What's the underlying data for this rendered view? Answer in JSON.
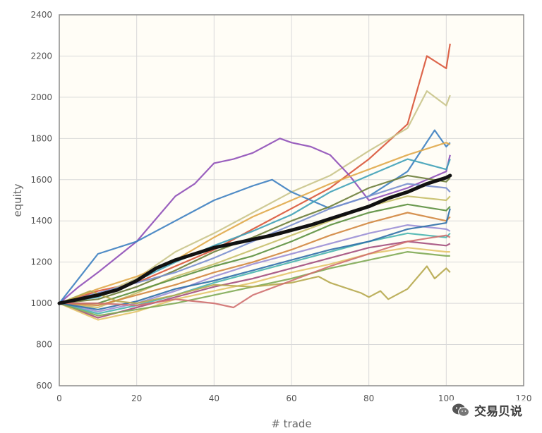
{
  "watermark": {
    "text": "交易贝说",
    "icon": "wechat-icon"
  },
  "colors": {
    "plot_bg": "#fffdf6",
    "grid": "#d9d9d9",
    "frame": "#8c8c8c",
    "mean_line": "#111111",
    "series_palette": [
      "#d9553a",
      "#c9c48b",
      "#8f4fb8",
      "#3d7fc1",
      "#e0a84a",
      "#3fa1b8",
      "#6c7d3a",
      "#7a8fcf",
      "#c7bf6a",
      "#5b8f3e",
      "#d1863f",
      "#9b8fd6",
      "#4ab5b0",
      "#a34e7d",
      "#e3c46a",
      "#7faa55",
      "#2f6fa8",
      "#b6a84e",
      "#cf6f6f",
      "#8aa06b"
    ]
  },
  "chart_data": {
    "type": "line",
    "title": "",
    "xlabel": "# trade",
    "ylabel": "equity",
    "xlim": [
      0,
      120
    ],
    "ylim": [
      600,
      2400
    ],
    "xticks": [
      0,
      20,
      40,
      60,
      80,
      100,
      120
    ],
    "xtick_labels": [
      "0",
      "20",
      "40",
      "60",
      "80",
      "100",
      "120"
    ],
    "yticks": [
      600,
      800,
      1000,
      1200,
      1400,
      1600,
      1800,
      2000,
      2200,
      2400
    ],
    "ytick_labels": [
      "600",
      "800",
      "1000",
      "1200",
      "1400",
      "1600",
      "1800",
      "2000",
      "2200",
      "2400"
    ],
    "grid": true,
    "legend": "none",
    "series": [
      {
        "x": [
          0,
          10,
          20,
          30,
          40,
          50,
          60,
          70,
          80,
          90,
          95,
          100,
          101
        ],
        "values": [
          1000,
          1060,
          1100,
          1180,
          1260,
          1360,
          1460,
          1560,
          1700,
          1870,
          2200,
          2140,
          2260
        ]
      },
      {
        "x": [
          0,
          10,
          20,
          30,
          40,
          50,
          60,
          70,
          80,
          90,
          95,
          100,
          101
        ],
        "values": [
          1000,
          1040,
          1120,
          1250,
          1340,
          1440,
          1540,
          1620,
          1740,
          1850,
          2030,
          1960,
          2010
        ]
      },
      {
        "x": [
          0,
          5,
          10,
          20,
          30,
          35,
          40,
          45,
          50,
          57,
          60,
          65,
          70,
          75,
          80,
          90,
          100,
          101
        ],
        "values": [
          1000,
          1080,
          1150,
          1300,
          1520,
          1580,
          1680,
          1700,
          1730,
          1800,
          1780,
          1760,
          1720,
          1620,
          1500,
          1560,
          1640,
          1720
        ]
      },
      {
        "x": [
          0,
          10,
          20,
          30,
          40,
          50,
          55,
          60,
          70,
          80,
          90,
          97,
          100,
          101
        ],
        "values": [
          1000,
          1240,
          1300,
          1400,
          1500,
          1570,
          1600,
          1540,
          1460,
          1520,
          1640,
          1840,
          1760,
          1780
        ]
      },
      {
        "x": [
          0,
          10,
          20,
          30,
          40,
          50,
          60,
          70,
          80,
          90,
          100,
          101
        ],
        "values": [
          1000,
          1070,
          1130,
          1210,
          1320,
          1420,
          1500,
          1580,
          1650,
          1720,
          1780,
          1770
        ]
      },
      {
        "x": [
          0,
          10,
          20,
          30,
          40,
          50,
          60,
          70,
          80,
          90,
          100,
          101
        ],
        "values": [
          1000,
          1030,
          1110,
          1200,
          1280,
          1350,
          1430,
          1540,
          1620,
          1700,
          1650,
          1700
        ]
      },
      {
        "x": [
          0,
          10,
          20,
          30,
          40,
          50,
          60,
          70,
          80,
          90,
          100,
          101
        ],
        "values": [
          1000,
          1020,
          1080,
          1160,
          1250,
          1320,
          1400,
          1470,
          1560,
          1620,
          1590,
          1610
        ]
      },
      {
        "x": [
          0,
          10,
          20,
          30,
          40,
          50,
          60,
          70,
          80,
          90,
          100,
          101
        ],
        "values": [
          1000,
          1050,
          1100,
          1150,
          1220,
          1300,
          1380,
          1460,
          1520,
          1580,
          1560,
          1540
        ]
      },
      {
        "x": [
          0,
          10,
          20,
          30,
          40,
          50,
          60,
          70,
          80,
          90,
          100,
          101
        ],
        "values": [
          1000,
          980,
          1050,
          1130,
          1190,
          1260,
          1330,
          1400,
          1470,
          1520,
          1500,
          1520
        ]
      },
      {
        "x": [
          0,
          10,
          20,
          30,
          40,
          50,
          60,
          70,
          80,
          90,
          100,
          101
        ],
        "values": [
          1000,
          1000,
          1060,
          1120,
          1180,
          1230,
          1300,
          1380,
          1440,
          1480,
          1450,
          1470
        ]
      },
      {
        "x": [
          0,
          10,
          20,
          30,
          40,
          50,
          60,
          70,
          80,
          90,
          100,
          101
        ],
        "values": [
          1000,
          990,
          1040,
          1090,
          1150,
          1200,
          1260,
          1330,
          1390,
          1440,
          1400,
          1420
        ]
      },
      {
        "x": [
          0,
          10,
          20,
          30,
          40,
          50,
          60,
          70,
          80,
          90,
          100,
          101
        ],
        "values": [
          1000,
          960,
          1000,
          1060,
          1130,
          1190,
          1240,
          1290,
          1340,
          1380,
          1360,
          1350
        ]
      },
      {
        "x": [
          0,
          10,
          20,
          30,
          40,
          50,
          60,
          70,
          80,
          90,
          100,
          101
        ],
        "values": [
          1000,
          950,
          990,
          1040,
          1100,
          1150,
          1200,
          1250,
          1300,
          1340,
          1320,
          1340
        ]
      },
      {
        "x": [
          0,
          10,
          20,
          30,
          40,
          50,
          60,
          70,
          80,
          90,
          100,
          101
        ],
        "values": [
          1000,
          930,
          980,
          1030,
          1080,
          1120,
          1170,
          1220,
          1270,
          1300,
          1280,
          1290
        ]
      },
      {
        "x": [
          0,
          10,
          20,
          30,
          40,
          50,
          60,
          70,
          80,
          90,
          100,
          101
        ],
        "values": [
          1000,
          920,
          960,
          1020,
          1060,
          1100,
          1150,
          1190,
          1240,
          1270,
          1250,
          1250
        ]
      },
      {
        "x": [
          0,
          10,
          20,
          30,
          40,
          50,
          60,
          70,
          80,
          90,
          100,
          101
        ],
        "values": [
          1000,
          940,
          970,
          1000,
          1040,
          1080,
          1120,
          1170,
          1210,
          1250,
          1230,
          1230
        ]
      },
      {
        "x": [
          0,
          10,
          20,
          30,
          40,
          50,
          60,
          70,
          80,
          90,
          100,
          101
        ],
        "values": [
          1000,
          970,
          1010,
          1070,
          1110,
          1160,
          1210,
          1260,
          1300,
          1360,
          1390,
          1460
        ]
      },
      {
        "x": [
          0,
          8,
          15,
          20,
          30,
          40,
          50,
          60,
          67,
          70,
          78,
          80,
          83,
          85,
          90,
          95,
          97,
          100,
          101
        ],
        "values": [
          1000,
          1060,
          1010,
          1000,
          1040,
          1090,
          1080,
          1100,
          1130,
          1100,
          1050,
          1030,
          1060,
          1020,
          1070,
          1180,
          1120,
          1170,
          1150
        ]
      },
      {
        "x": [
          0,
          10,
          20,
          30,
          40,
          45,
          50,
          60,
          70,
          80,
          90,
          100,
          101
        ],
        "values": [
          1000,
          1000,
          990,
          1020,
          1000,
          980,
          1040,
          1110,
          1180,
          1240,
          1300,
          1330,
          1320
        ]
      }
    ],
    "mean": {
      "x": [
        0,
        5,
        10,
        15,
        20,
        25,
        30,
        35,
        40,
        45,
        50,
        55,
        60,
        65,
        70,
        75,
        80,
        85,
        90,
        95,
        100,
        101
      ],
      "values": [
        1000,
        1020,
        1040,
        1065,
        1110,
        1170,
        1210,
        1240,
        1270,
        1290,
        1310,
        1330,
        1355,
        1380,
        1410,
        1440,
        1470,
        1510,
        1540,
        1580,
        1610,
        1620
      ]
    }
  }
}
